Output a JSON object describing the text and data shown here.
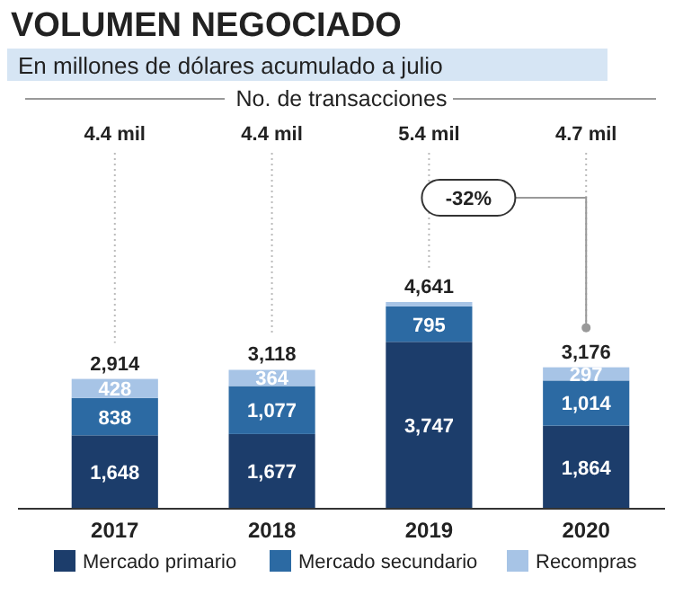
{
  "chart_data": {
    "type": "bar",
    "stacked": true,
    "title": "VOLUMEN NEGOCIADO",
    "subtitle": "En millones de dólares acumulado a julio",
    "categories": [
      "2017",
      "2018",
      "2019",
      "2020"
    ],
    "series": [
      {
        "name": "Mercado primario",
        "color": "#1c3d6b",
        "values": [
          1648,
          1677,
          3747,
          1864
        ],
        "value_labels": [
          "1,648",
          "1,677",
          "3,747",
          "1,864"
        ]
      },
      {
        "name": "Mercado secundario",
        "color": "#2c6aa3",
        "values": [
          838,
          1077,
          795,
          1014
        ],
        "value_labels": [
          "838",
          "1,077",
          "795",
          "1,014"
        ]
      },
      {
        "name": "Recompras",
        "color": "#a7c4e6",
        "values": [
          428,
          364,
          99,
          297
        ],
        "value_labels": [
          "428",
          "364",
          null,
          "297"
        ]
      }
    ],
    "totals": [
      "2,914",
      "3,118",
      "4,641",
      "3,176"
    ],
    "legend": "bottom",
    "grid": "x",
    "annotations": [
      "No. de transacciones",
      "4.4 mil",
      "4.4 mil",
      "5.4 mil",
      "4.7 mil",
      "-32%"
    ]
  }
}
